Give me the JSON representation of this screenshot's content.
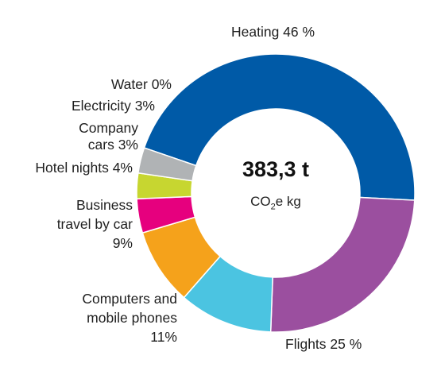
{
  "chart_data": {
    "type": "pie",
    "style": "donut",
    "center_value": "383,3 t",
    "center_unit_main": "CO",
    "center_unit_sub": "2",
    "center_unit_rest": "e kg",
    "slices": [
      {
        "label": "Heating 46 %",
        "value": 46,
        "color": "#005aa7"
      },
      {
        "label": "Flights 25 %",
        "value": 25,
        "color": "#9b4f9f"
      },
      {
        "label": "Computers and mobile phones 11%",
        "value": 11,
        "color": "#4bc4e1"
      },
      {
        "label": "Business travel by car 9%",
        "value": 9,
        "color": "#f5a21b"
      },
      {
        "label": "Hotel nights 4%",
        "value": 4,
        "color": "#e6007e"
      },
      {
        "label": "Company cars 3%",
        "value": 3,
        "color": "#c7d630"
      },
      {
        "label": "Electricity 3%",
        "value": 3,
        "color": "#b0b3b5"
      },
      {
        "label": "Water 0%",
        "value": 0,
        "color": "#ffffff"
      }
    ]
  },
  "labels": {
    "heating": "Heating 46 %",
    "water": "Water 0%",
    "electricity": "Electricity 3%",
    "company_cars_1": "Company",
    "company_cars_2": "cars 3%",
    "hotel": "Hotel nights 4%",
    "car_1": "Business",
    "car_2": "travel by car",
    "car_3": "9%",
    "computers_1": "Computers and",
    "computers_2": "mobile phones",
    "computers_3": "11%",
    "flights": "Flights 25 %"
  }
}
